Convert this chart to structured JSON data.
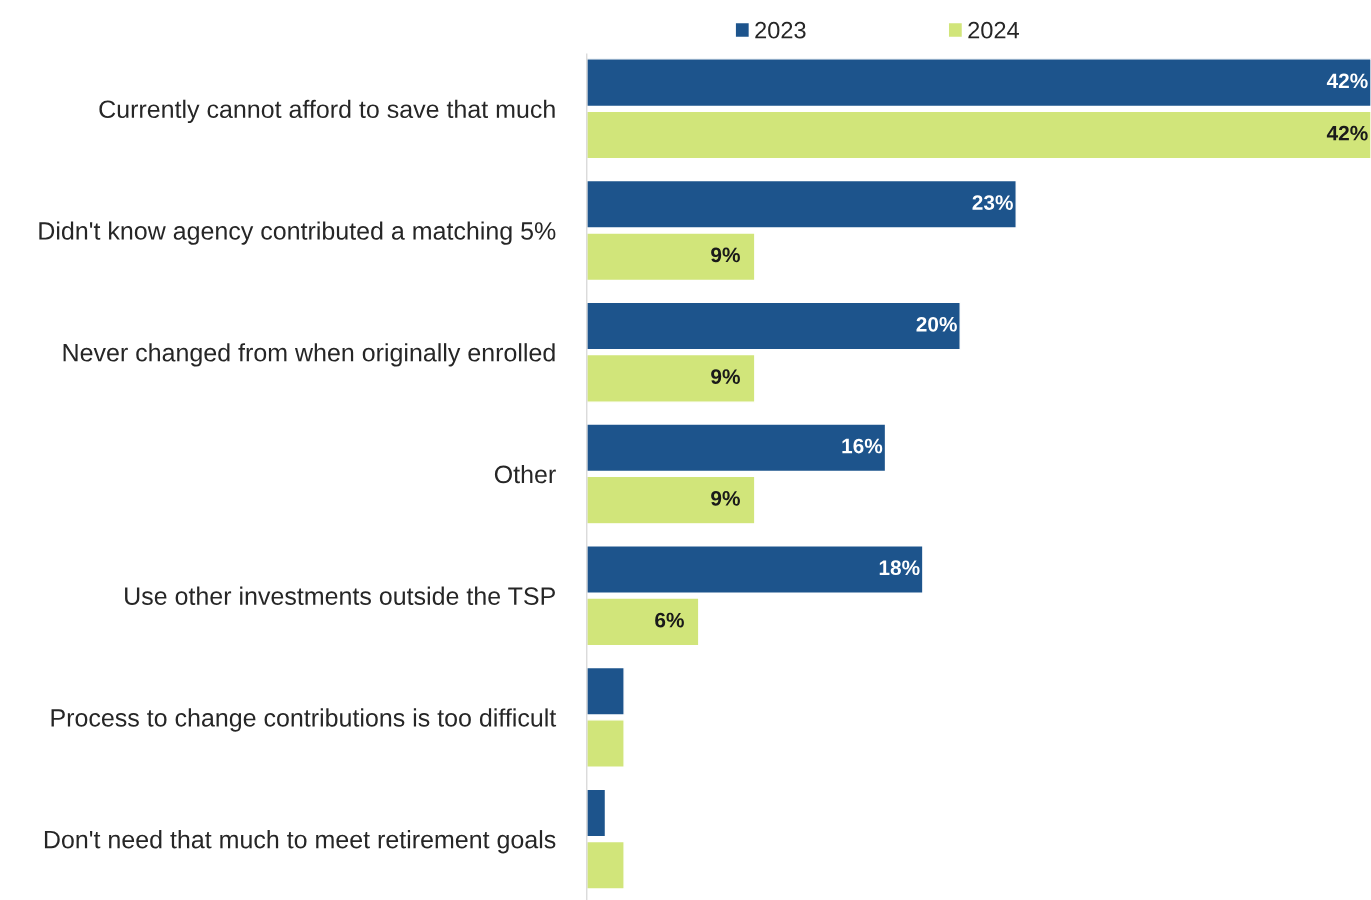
{
  "chart_data": {
    "type": "bar",
    "orientation": "horizontal",
    "legend": "top",
    "grid": false,
    "categories": [
      "Currently cannot afford to save that much",
      "Didn't know agency contributed a matching 5%",
      "Never changed from when originally enrolled",
      "Other",
      "Use other investments outside the TSP",
      "Process to change contributions is too difficult",
      "Don't need that much to meet retirement goals"
    ],
    "series": [
      {
        "name": "2023",
        "color": "#1d548c",
        "values": [
          42,
          23,
          20,
          16,
          18,
          2,
          1
        ],
        "value_labels": [
          "42%",
          "23%",
          "20%",
          "16%",
          "18%",
          null,
          null
        ]
      },
      {
        "name": "2024",
        "color": "#d1e57a",
        "values": [
          42,
          9,
          9,
          9,
          6,
          2,
          2
        ],
        "value_labels": [
          "42%",
          "9%",
          "9%",
          "9%",
          "6%",
          null,
          null
        ]
      }
    ]
  }
}
